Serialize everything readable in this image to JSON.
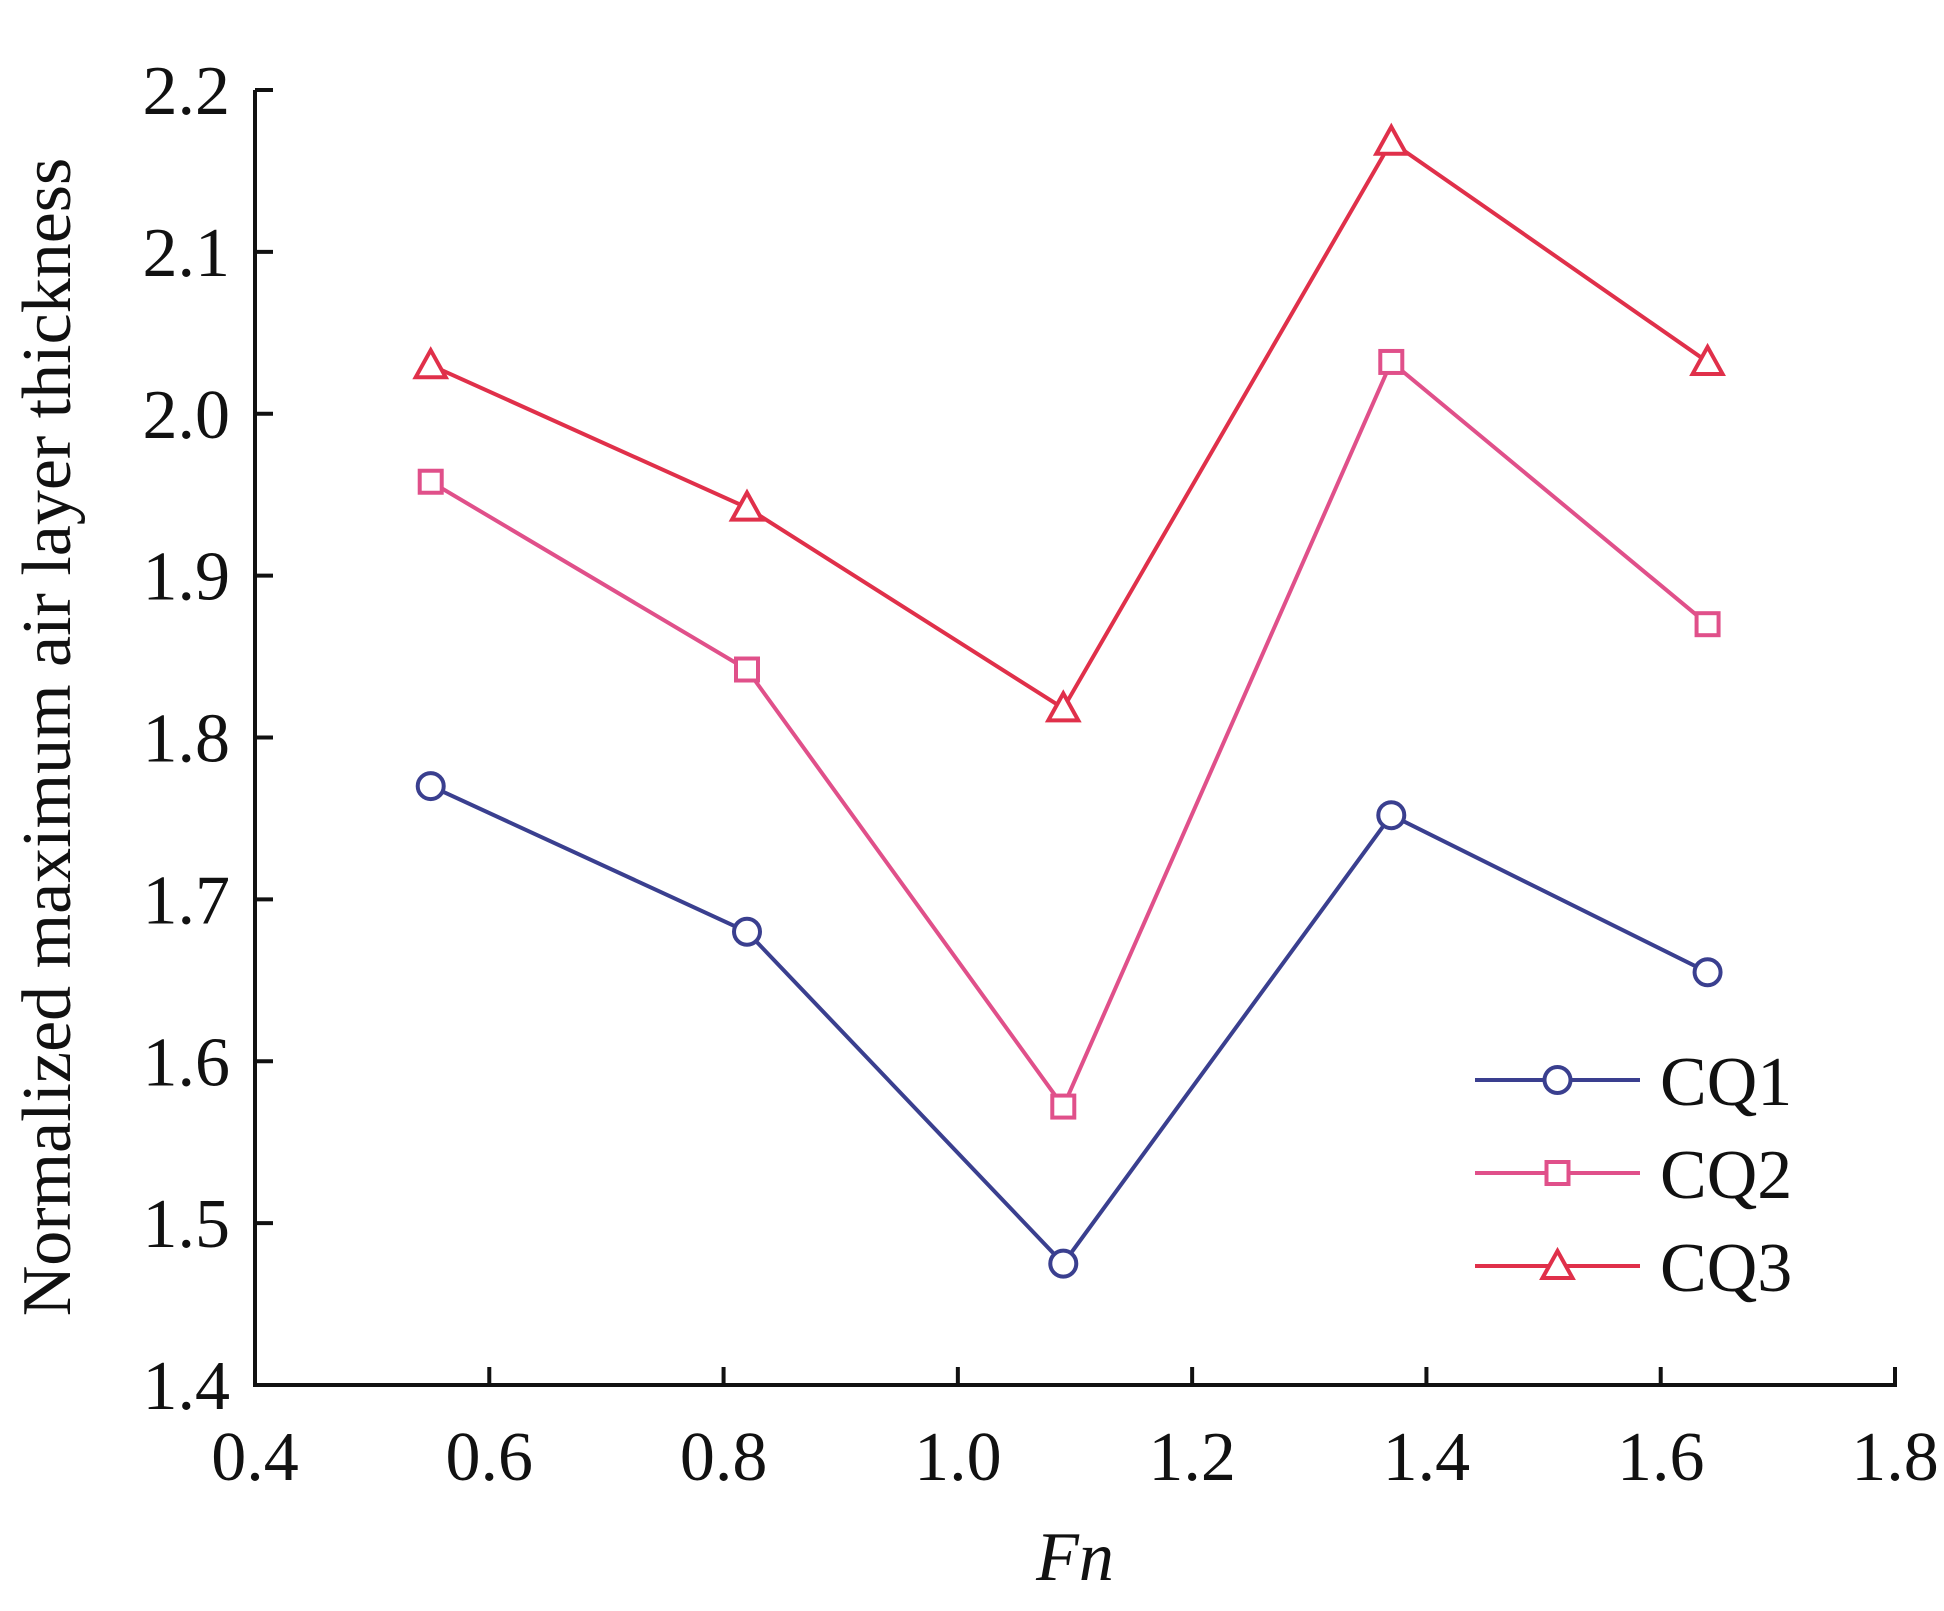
{
  "chart_data": {
    "type": "line",
    "xlabel": "Fn",
    "ylabel": "Normalized maximum air layer thickness",
    "xlim": [
      0.4,
      1.8
    ],
    "ylim": [
      1.4,
      2.2
    ],
    "x_ticks": [
      "0.4",
      "0.6",
      "0.8",
      "1.0",
      "1.2",
      "1.4",
      "1.6",
      "1.8"
    ],
    "y_ticks": [
      "1.4",
      "1.5",
      "1.6",
      "1.7",
      "1.8",
      "1.9",
      "2.0",
      "2.1",
      "2.2"
    ],
    "x": [
      0.55,
      0.82,
      1.09,
      1.37,
      1.64
    ],
    "series": [
      {
        "name": "CQ1",
        "values": [
          1.77,
          1.68,
          1.475,
          1.752,
          1.655
        ],
        "color": "#3a3f8f",
        "marker": "circle"
      },
      {
        "name": "CQ2",
        "values": [
          1.958,
          1.842,
          1.572,
          2.032,
          1.87
        ],
        "color": "#e0508a",
        "marker": "square"
      },
      {
        "name": "CQ3",
        "values": [
          2.03,
          1.942,
          1.818,
          2.168,
          2.032
        ],
        "color": "#e0304a",
        "marker": "triangle"
      }
    ],
    "legend_position": "bottom-right",
    "grid": false
  }
}
